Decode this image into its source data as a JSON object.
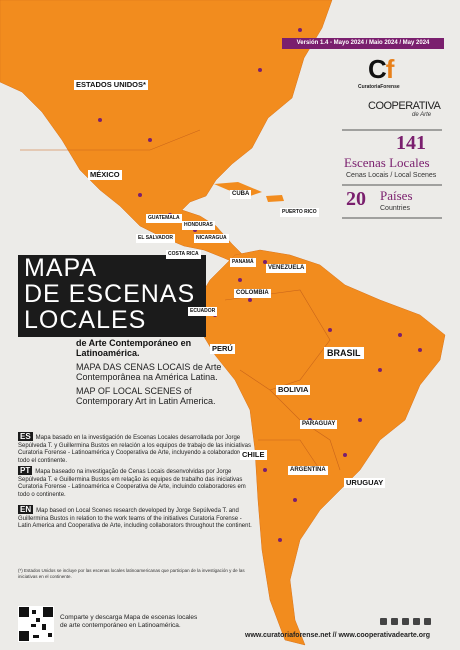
{
  "header": {
    "version": "Versión 1.4 - Mayo 2024 / Maio 2024 / May 2024",
    "logo_curatoria": "CuratoriaForense",
    "logo_cooperativa": "COOPERATIVA",
    "logo_cooperativa_sub": "de Arte"
  },
  "stats": {
    "scenes_count": "141",
    "scenes_label": "Escenas Locales",
    "scenes_sublabel": "Cenas Locais / Local Scenes",
    "countries_count": "20",
    "countries_label": "Países",
    "countries_sublabel": "Countries"
  },
  "title": {
    "lines": [
      "MAPA",
      "DE ESCENAS",
      "LOCALES"
    ],
    "subtitle_es": "de Arte Contemporáneo en Latinoamérica.",
    "subtitle_pt": "MAPA DAS CENAS LOCAIS de Arte Contemporânea na América Latina.",
    "subtitle_en": "MAP OF LOCAL SCENES of Contemporary Art in Latin America."
  },
  "descriptions": [
    {
      "lang": "ES",
      "text": "Mapa basado en la investigación de Escenas Locales desarrollada por Jorge Sepúlveda T. y Guillermina Bustos en relación a los equipos de trabajo de las iniciativas Curatoria Forense - Latinoamérica y Cooperativa de Arte, incluyendo a colaboradores en todo el continente."
    },
    {
      "lang": "PT",
      "text": "Mapa baseado na investigação de Cenas Locais desenvolvidas por Jorge Sepúlveda T. e Guillermina Bustos em relação às equipes de trabalho das iniciativas Curatoria Forense - Latinoamérica e Cooperativa de Arte, incluindo colaboradores em todo o continente."
    },
    {
      "lang": "EN",
      "text": "Map based on Local Scenes research developed by Jorge Sepúlveda T. and Guillermina Bustos in relation to the work teams of the initiatives Curatoria Forense - Latin America and Cooperativa de Arte, including collaborators throughout the continent."
    }
  ],
  "countries": [
    "ESTADOS UNIDOS*",
    "MÉXICO",
    "CUBA",
    "PUERTO RICO",
    "GUATEMALA",
    "HONDURAS",
    "EL SALVADOR",
    "NICARAGUA",
    "COSTA RICA",
    "PANAMÁ",
    "VENEZUELA",
    "COLOMBIA",
    "ECUADOR",
    "PERÚ",
    "BRASIL",
    "BOLIVIA",
    "PARAGUAY",
    "CHILE",
    "URUGUAY",
    "ARGENTINA"
  ],
  "footer": {
    "note": "(*) Estados Unidos se incluye por las escenas locales latinoamericanas que participan de la investigación y de las iniciativas en el continente.",
    "share": "Comparte y descarga Mapa de escenas locales de arte contemporáneo en Latinoamérica.",
    "urls": "www.curatoriaforense.net // www.cooperativadearte.org"
  }
}
